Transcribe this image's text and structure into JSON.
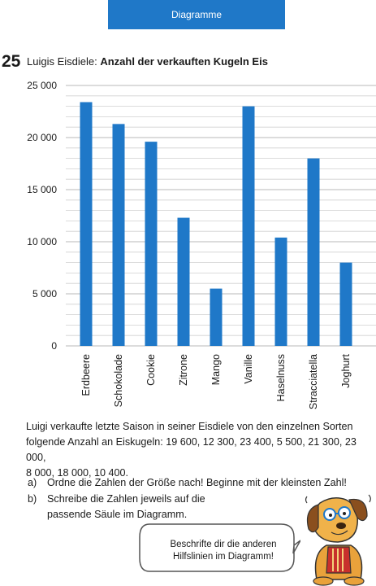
{
  "header": {
    "label": "Diagramme"
  },
  "task": {
    "number": "25",
    "title_prefix": "Luigis Eisdiele: ",
    "title_bold": "Anzahl der verkauften Kugeln Eis"
  },
  "chart_data": {
    "type": "bar",
    "title": "Luigis Eisdiele: Anzahl der verkauften Kugeln Eis",
    "categories": [
      "Erdbeere",
      "Schokolade",
      "Cookie",
      "Zitrone",
      "Mango",
      "Vanille",
      "Haselnuss",
      "Stracciatella",
      "Joghurt"
    ],
    "values": [
      23400,
      21300,
      19600,
      12300,
      5500,
      23000,
      10400,
      18000,
      8000
    ],
    "ylim": [
      0,
      25000
    ],
    "yticks": [
      0,
      5000,
      10000,
      15000,
      20000,
      25000
    ],
    "ytick_labels": [
      "0",
      "5 000",
      "10 000",
      "15 000",
      "20 000",
      "25 000"
    ],
    "grid": true,
    "gridline_step": 1000,
    "bar_color": "#1f78c8"
  },
  "paragraph": {
    "line1": "Luigi verkaufte letzte Saison in seiner Eisdiele von den einzelnen Sorten",
    "line2": "folgende Anzahl an Eiskugeln: 19 600, 12 300, 23 400, 5 500, 21 300, 23 000,",
    "line3": "8 000, 18 000, 10 400."
  },
  "tasks": {
    "a_letter": "a)",
    "a_text": "Ordne die Zahlen der Größe nach! Beginne mit der kleinsten Zahl!",
    "b_letter": "b)",
    "b_text_line1": "Schreibe die Zahlen jeweils auf die",
    "b_text_line2": "passende Säule im Diagramm."
  },
  "speech_bubble": {
    "line1": "Beschrifte dir die anderen",
    "line2": "Hilfslinien im Diagramm!"
  },
  "colors": {
    "accent": "#1f78c8",
    "grid": "#d0d0d0",
    "text": "#1a1a1a"
  }
}
